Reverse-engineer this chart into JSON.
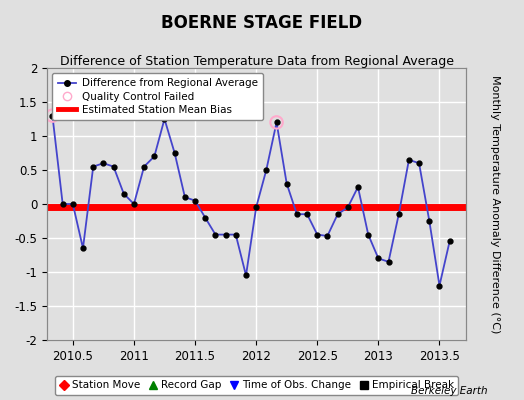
{
  "title": "BOERNE STAGE FIELD",
  "subtitle": "Difference of Station Temperature Data from Regional Average",
  "ylabel": "Monthly Temperature Anomaly Difference (°C)",
  "xlim": [
    2010.29,
    2013.72
  ],
  "ylim": [
    -2,
    2
  ],
  "yticks": [
    -2,
    -1.5,
    -1,
    -0.5,
    0,
    0.5,
    1,
    1.5,
    2
  ],
  "xticks": [
    2010.5,
    2011.0,
    2011.5,
    2012.0,
    2012.5,
    2013.0,
    2013.5
  ],
  "xtick_labels": [
    "2010.5",
    "2011",
    "2011.5",
    "2012",
    "2012.5",
    "2013",
    "2013.5"
  ],
  "bias": -0.05,
  "line_color": "#4444cc",
  "marker_color": "#000000",
  "bias_color": "#ff0000",
  "background_color": "#e0e0e0",
  "grid_color": "#ffffff",
  "qc_fail_color": "#ffaacc",
  "x_data": [
    2010.333,
    2010.417,
    2010.5,
    2010.583,
    2010.667,
    2010.75,
    2010.833,
    2010.917,
    2011.0,
    2011.083,
    2011.167,
    2011.25,
    2011.333,
    2011.417,
    2011.5,
    2011.583,
    2011.667,
    2011.75,
    2011.833,
    2011.917,
    2012.0,
    2012.083,
    2012.167,
    2012.25,
    2012.333,
    2012.417,
    2012.5,
    2012.583,
    2012.667,
    2012.75,
    2012.833,
    2012.917,
    2013.0,
    2013.083,
    2013.167,
    2013.25,
    2013.333,
    2013.417,
    2013.5,
    2013.583
  ],
  "y_data": [
    1.3,
    0.0,
    0.0,
    -0.65,
    0.55,
    0.6,
    0.55,
    0.15,
    0.0,
    0.55,
    0.7,
    1.25,
    0.75,
    0.1,
    0.05,
    -0.2,
    -0.45,
    -0.45,
    -0.45,
    -1.05,
    -0.05,
    0.5,
    1.2,
    0.3,
    -0.15,
    -0.15,
    -0.45,
    -0.47,
    -0.15,
    -0.05,
    0.25,
    -0.45,
    -0.8,
    -0.85,
    -0.15,
    0.65,
    0.6,
    -0.25,
    -1.2,
    -0.55
  ],
  "qc_fail_indices": [
    0,
    22
  ],
  "watermark": "Berkeley Earth",
  "title_fontsize": 12,
  "subtitle_fontsize": 9,
  "tick_fontsize": 8.5,
  "ylabel_fontsize": 8
}
